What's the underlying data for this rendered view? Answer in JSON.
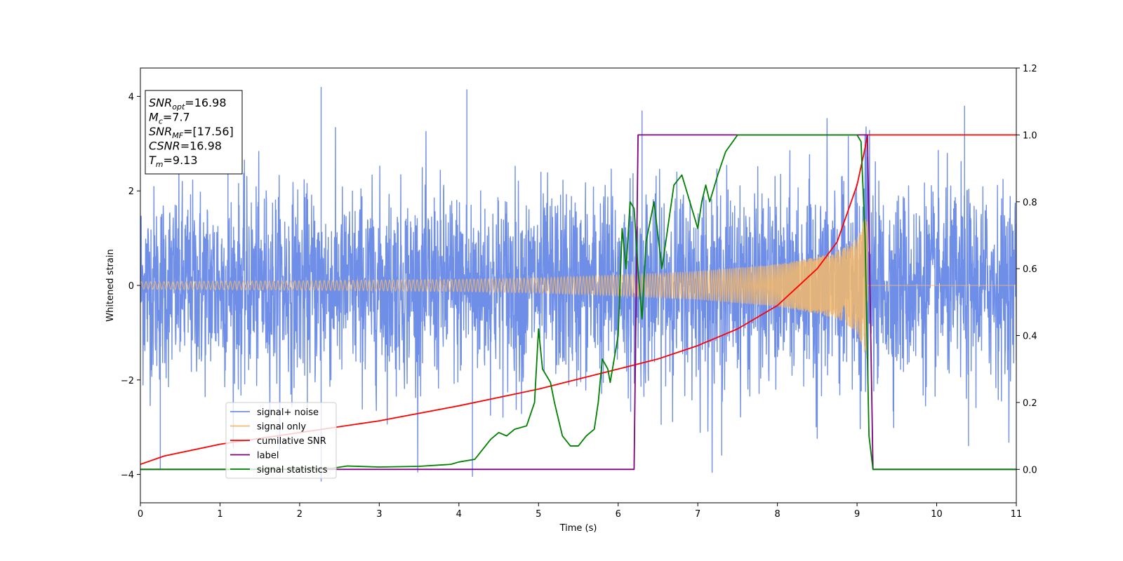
{
  "chart_data": {
    "type": "line",
    "xlabel": "Time (s)",
    "ylabel": "Whitened strain",
    "xlim": [
      0,
      11
    ],
    "ylim_left": [
      -4.6,
      4.6
    ],
    "ylim_right": [
      -0.1,
      1.2
    ],
    "x_ticks": [
      0,
      1,
      2,
      3,
      4,
      5,
      6,
      7,
      8,
      9,
      10,
      11
    ],
    "y_ticks_left": [
      -4,
      -2,
      0,
      2,
      4
    ],
    "y_ticks_right": [
      0.0,
      0.2,
      0.4,
      0.6,
      0.8,
      1.0,
      1.2
    ],
    "grid": false,
    "legend_position": "lower-left",
    "series": [
      {
        "name": "signal+ noise",
        "axis": "left",
        "color": "#6f8ee8",
        "kind": "noise-band",
        "std": 1.0,
        "peaks_high": [
          [
            1.1,
            2.6
          ],
          [
            2.27,
            4.2
          ],
          [
            4.1,
            4.15
          ],
          [
            6.3,
            3.7
          ],
          [
            9.1,
            3.2
          ],
          [
            10.35,
            3.8
          ]
        ],
        "peaks_low": [
          [
            0.25,
            -3.9
          ],
          [
            2.27,
            -4.15
          ],
          [
            4.17,
            -4.05
          ],
          [
            7.3,
            -3.6
          ],
          [
            10.4,
            -3.4
          ]
        ]
      },
      {
        "name": "signal only",
        "axis": "left",
        "color": "#f5b96a",
        "kind": "chirp-envelope",
        "merger_time": 9.13,
        "points": [
          [
            0,
            0.08
          ],
          [
            2,
            0.1
          ],
          [
            4,
            0.13
          ],
          [
            5,
            0.16
          ],
          [
            6,
            0.22
          ],
          [
            7,
            0.3
          ],
          [
            8,
            0.45
          ],
          [
            8.5,
            0.6
          ],
          [
            8.8,
            0.75
          ],
          [
            9.0,
            1.0
          ],
          [
            9.13,
            1.6
          ],
          [
            9.2,
            0.0
          ],
          [
            11,
            0.0
          ]
        ]
      },
      {
        "name": "cumilative SNR",
        "axis": "right",
        "color": "#ff0000",
        "points": [
          [
            0,
            0.015
          ],
          [
            0.3,
            0.04
          ],
          [
            1,
            0.075
          ],
          [
            2,
            0.11
          ],
          [
            3,
            0.145
          ],
          [
            4,
            0.19
          ],
          [
            5,
            0.24
          ],
          [
            6,
            0.3
          ],
          [
            6.5,
            0.33
          ],
          [
            7,
            0.37
          ],
          [
            7.5,
            0.42
          ],
          [
            8,
            0.49
          ],
          [
            8.5,
            0.6
          ],
          [
            8.75,
            0.68
          ],
          [
            9.0,
            0.85
          ],
          [
            9.1,
            0.96
          ],
          [
            9.13,
            1.0
          ],
          [
            11,
            1.0
          ]
        ]
      },
      {
        "name": "label",
        "axis": "right",
        "color": "#800080",
        "points": [
          [
            0,
            0.0
          ],
          [
            6.2,
            0.0
          ],
          [
            6.25,
            1.0
          ],
          [
            9.13,
            1.0
          ],
          [
            9.2,
            0.0
          ],
          [
            11,
            0.0
          ]
        ]
      },
      {
        "name": "signal statistics",
        "axis": "right",
        "color": "#008000",
        "points": [
          [
            0,
            0.0
          ],
          [
            2.0,
            0.0
          ],
          [
            2.4,
            0.003
          ],
          [
            2.6,
            0.01
          ],
          [
            3.0,
            0.007
          ],
          [
            3.5,
            0.009
          ],
          [
            3.9,
            0.015
          ],
          [
            4.0,
            0.022
          ],
          [
            4.2,
            0.03
          ],
          [
            4.3,
            0.06
          ],
          [
            4.4,
            0.09
          ],
          [
            4.5,
            0.11
          ],
          [
            4.6,
            0.1
          ],
          [
            4.7,
            0.12
          ],
          [
            4.85,
            0.13
          ],
          [
            4.95,
            0.2
          ],
          [
            5.0,
            0.42
          ],
          [
            5.05,
            0.3
          ],
          [
            5.15,
            0.26
          ],
          [
            5.2,
            0.2
          ],
          [
            5.3,
            0.1
          ],
          [
            5.4,
            0.07
          ],
          [
            5.5,
            0.07
          ],
          [
            5.6,
            0.1
          ],
          [
            5.7,
            0.12
          ],
          [
            5.75,
            0.2
          ],
          [
            5.8,
            0.33
          ],
          [
            5.87,
            0.3
          ],
          [
            5.9,
            0.26
          ],
          [
            6.0,
            0.4
          ],
          [
            6.05,
            0.72
          ],
          [
            6.1,
            0.6
          ],
          [
            6.15,
            0.8
          ],
          [
            6.2,
            0.78
          ],
          [
            6.25,
            0.6
          ],
          [
            6.3,
            0.45
          ],
          [
            6.35,
            0.68
          ],
          [
            6.45,
            0.8
          ],
          [
            6.55,
            0.6
          ],
          [
            6.7,
            0.85
          ],
          [
            6.8,
            0.88
          ],
          [
            6.9,
            0.8
          ],
          [
            7.0,
            0.72
          ],
          [
            7.05,
            0.8
          ],
          [
            7.1,
            0.85
          ],
          [
            7.15,
            0.8
          ],
          [
            7.25,
            0.88
          ],
          [
            7.35,
            0.95
          ],
          [
            7.5,
            1.0
          ],
          [
            7.8,
            1.0
          ],
          [
            8.5,
            1.0
          ],
          [
            9.0,
            1.0
          ],
          [
            9.05,
            0.98
          ],
          [
            9.1,
            0.7
          ],
          [
            9.15,
            0.1
          ],
          [
            9.2,
            0.0
          ],
          [
            11,
            0.0
          ]
        ]
      }
    ],
    "annotation": [
      {
        "base": "SNR",
        "sub": "opt",
        "rest": "=16.98"
      },
      {
        "base": "M",
        "sub": "c",
        "rest": "=7.7"
      },
      {
        "base": "SNR",
        "sub": "MF",
        "rest": "=[17.56]"
      },
      {
        "base": "CSNR",
        "sub": "",
        "rest": "=16.98"
      },
      {
        "base": "T",
        "sub": "m",
        "rest": "=9.13"
      }
    ]
  }
}
